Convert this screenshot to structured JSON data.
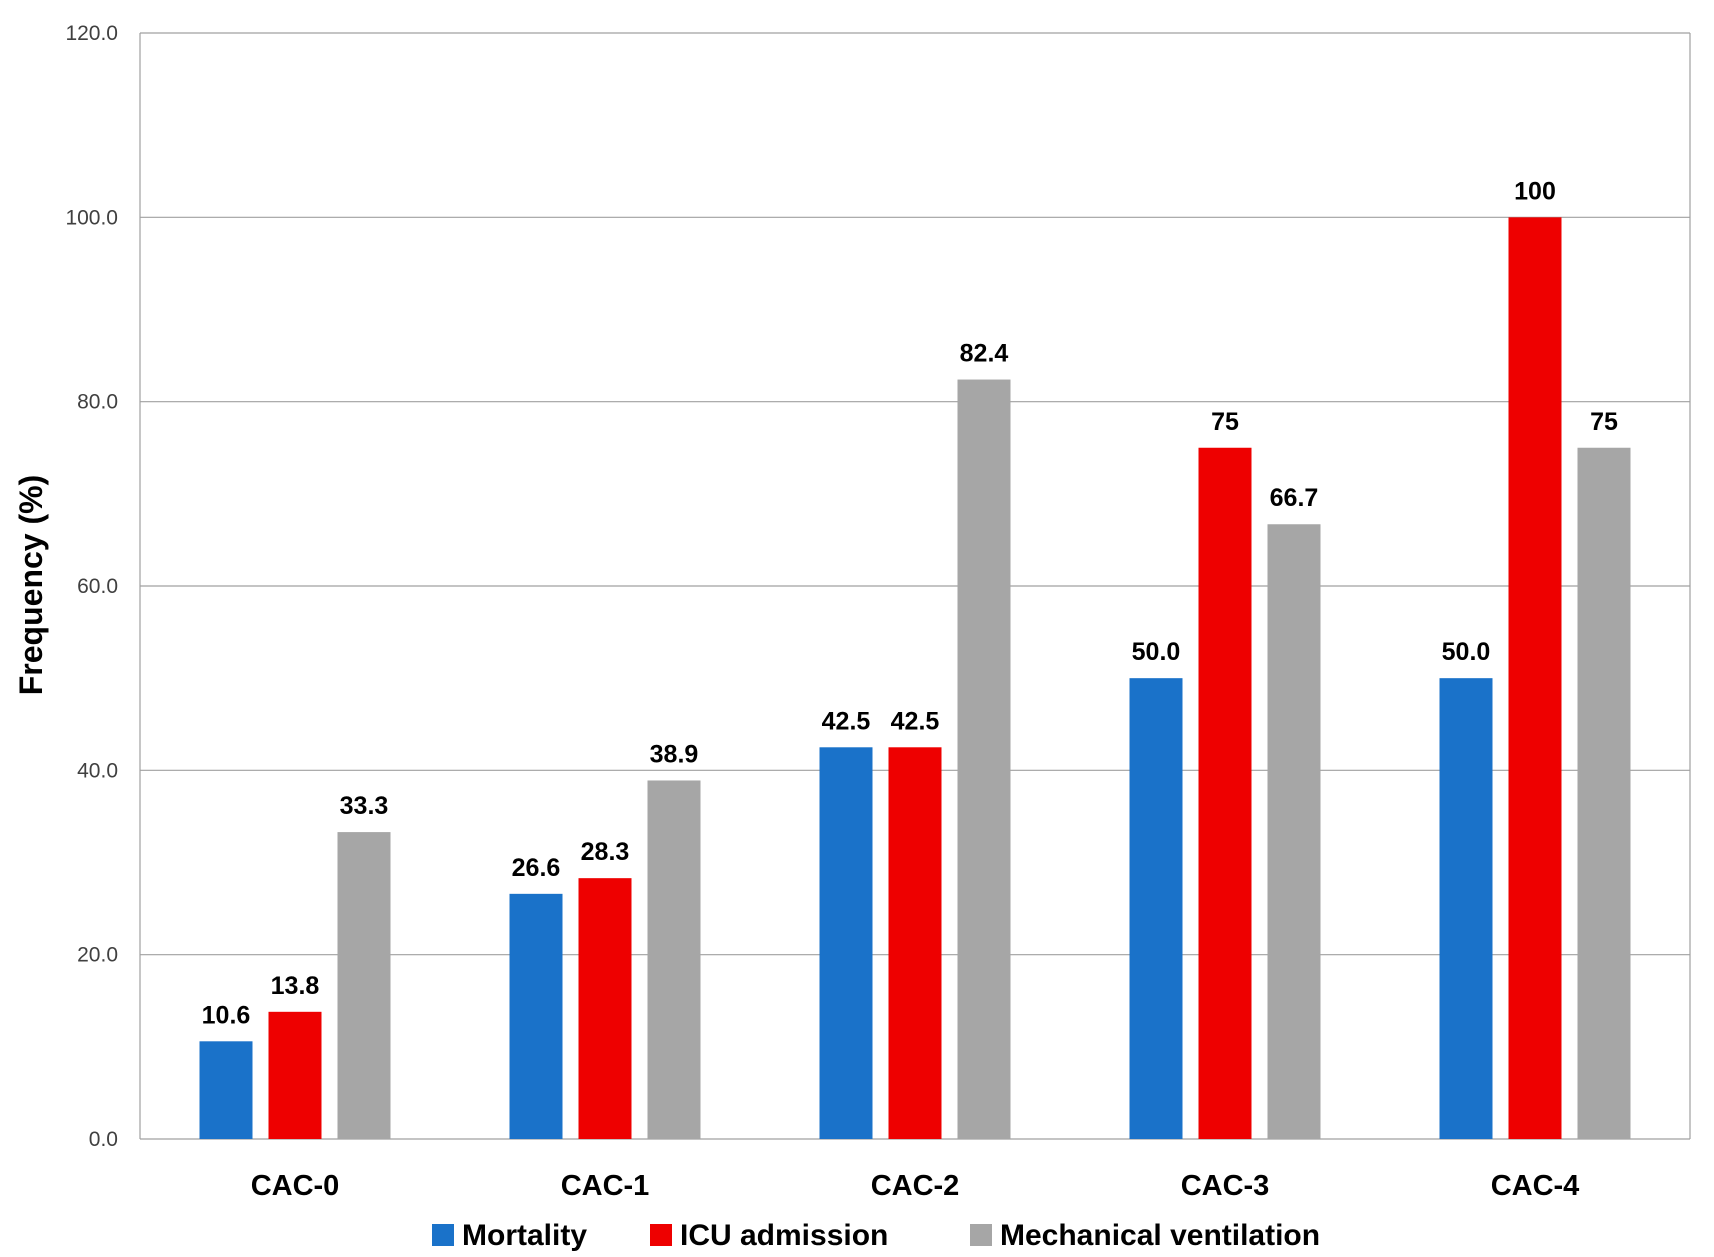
{
  "chart_data": {
    "type": "bar",
    "title": "",
    "xlabel": "",
    "ylabel": "Frequency (%)",
    "ylim": [
      0,
      120
    ],
    "yticks": [
      "0.0",
      "20.0",
      "40.0",
      "60.0",
      "80.0",
      "100.0",
      "120.0"
    ],
    "grid": true,
    "legend_position": "bottom",
    "categories": [
      "CAC-0",
      "CAC-1",
      "CAC-2",
      "CAC-3",
      "CAC-4"
    ],
    "series": [
      {
        "name": "Mortality",
        "color": "#1A72C9",
        "values": [
          10.6,
          26.6,
          42.5,
          50.0,
          50.0
        ],
        "labels": [
          "10.6",
          "26.6",
          "42.5",
          "50.0",
          "50.0"
        ]
      },
      {
        "name": "ICU admission",
        "color": "#EE0000",
        "values": [
          13.8,
          28.3,
          42.5,
          75,
          100
        ],
        "labels": [
          "13.8",
          "28.3",
          "42.5",
          "75",
          "100"
        ]
      },
      {
        "name": "Mechanical ventilation",
        "color": "#A6A6A6",
        "values": [
          33.3,
          38.9,
          82.4,
          66.7,
          75
        ],
        "labels": [
          "33.3",
          "38.9",
          "82.4",
          "66.7",
          "75"
        ]
      }
    ]
  }
}
